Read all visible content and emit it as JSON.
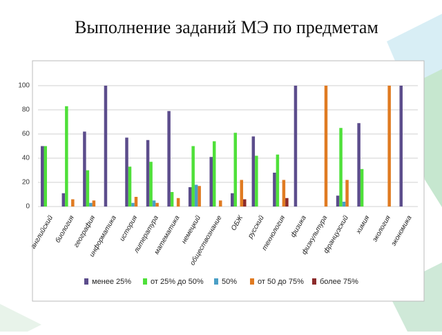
{
  "chart_data": {
    "type": "bar",
    "title": "Выполнение заданий МЭ по предметам",
    "categories": [
      "английский",
      "биология",
      "география",
      "информатика",
      "история",
      "литература",
      "математика",
      "немецкий",
      "обществознание",
      "ОБЖ",
      "русский",
      "технология",
      "физика",
      "физкультура",
      "французский",
      "химия",
      "экология",
      "экономика"
    ],
    "series": [
      {
        "name": "менее 25%",
        "color": "#5c4d8c",
        "values": [
          50,
          11,
          62,
          100,
          57,
          55,
          79,
          16,
          41,
          11,
          58,
          28,
          100,
          0,
          9,
          69,
          0,
          100
        ]
      },
      {
        "name": "от 25% до 50%",
        "color": "#4fe03a",
        "values": [
          50,
          83,
          30,
          0,
          33,
          37,
          12,
          50,
          54,
          61,
          42,
          43,
          0,
          0,
          65,
          31,
          0,
          0
        ]
      },
      {
        "name": "50%",
        "color": "#4b9fc6",
        "values": [
          0,
          0,
          3,
          0,
          3,
          5,
          0,
          18,
          0,
          0,
          0,
          0,
          0,
          0,
          4,
          0,
          0,
          0
        ]
      },
      {
        "name": "от 50 до 75%",
        "color": "#e07b22",
        "values": [
          0,
          6,
          5,
          0,
          8,
          3,
          7,
          17,
          5,
          22,
          0,
          22,
          0,
          100,
          22,
          0,
          100,
          0
        ]
      },
      {
        "name": "более 75%",
        "color": "#8c2b2b",
        "values": [
          0,
          0,
          0,
          0,
          0,
          0,
          0,
          0,
          0,
          6,
          0,
          7,
          0,
          0,
          0,
          0,
          0,
          0
        ]
      }
    ],
    "ylim": [
      0,
      100
    ],
    "yticks": [
      0,
      20,
      40,
      60,
      80,
      100
    ],
    "grid": true
  }
}
